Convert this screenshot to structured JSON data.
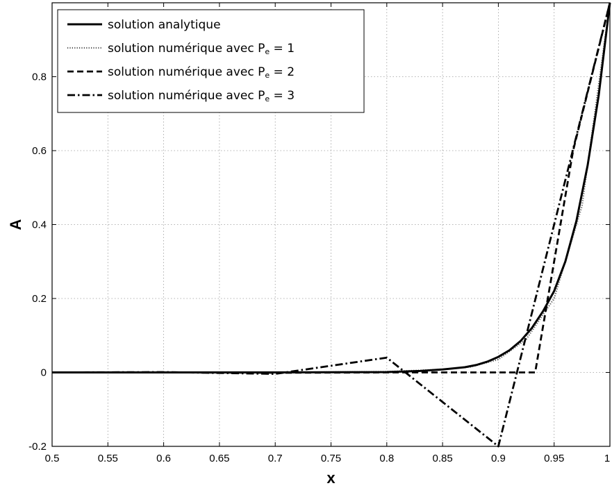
{
  "chart_data": {
    "type": "line",
    "xlabel": "x",
    "ylabel": "A",
    "xlim": [
      0.5,
      1.0
    ],
    "ylim": [
      -0.2,
      1.0
    ],
    "grid": true,
    "legend_position": "top-left",
    "x_ticks": [
      0.5,
      0.55,
      0.6,
      0.65,
      0.7,
      0.75,
      0.8,
      0.85,
      0.9,
      0.95,
      1.0
    ],
    "x_tick_labels": [
      "0.5",
      "0.55",
      "0.6",
      "0.65",
      "0.7",
      "0.75",
      "0.8",
      "0.85",
      "0.9",
      "0.95",
      "1"
    ],
    "y_ticks": [
      -0.2,
      0,
      0.2,
      0.4,
      0.6,
      0.8
    ],
    "y_tick_labels": [
      "-0.2",
      "0",
      "0.2",
      "0.4",
      "0.6",
      "0.8"
    ],
    "series": [
      {
        "name": "solution analytique",
        "style": "solid",
        "x": [
          0.5,
          0.7,
          0.8,
          0.83,
          0.85,
          0.87,
          0.88,
          0.89,
          0.9,
          0.91,
          0.92,
          0.93,
          0.94,
          0.95,
          0.96,
          0.97,
          0.98,
          0.99,
          1.0
        ],
        "y": [
          0,
          0,
          0.001,
          0.004,
          0.008,
          0.014,
          0.02,
          0.029,
          0.042,
          0.06,
          0.085,
          0.12,
          0.165,
          0.22,
          0.3,
          0.41,
          0.56,
          0.75,
          1.0
        ]
      },
      {
        "name": "solution numérique avec Pe = 1",
        "label_main": "solution numérique avec P",
        "label_sub": "e",
        "label_tail": " = 1",
        "style": "dotted",
        "x": [
          0.5,
          0.7,
          0.8,
          0.85,
          0.875,
          0.9,
          0.925,
          0.95,
          0.975,
          1.0
        ],
        "y": [
          0,
          0,
          0.002,
          0.008,
          0.015,
          0.035,
          0.09,
          0.2,
          0.45,
          1.0
        ]
      },
      {
        "name": "solution numérique avec Pe = 2",
        "label_main": "solution numérique avec P",
        "label_sub": "e",
        "label_tail": " = 2",
        "style": "dashed",
        "x": [
          0.5,
          0.6,
          0.7,
          0.8,
          0.9,
          0.933,
          0.967,
          1.0
        ],
        "y": [
          0,
          0,
          -0.001,
          0,
          0,
          0,
          0.6,
          1.0
        ]
      },
      {
        "name": "solution numérique avec Pe = 3",
        "label_main": "solution numérique avec P",
        "label_sub": "e",
        "label_tail": " = 3",
        "style": "dashdot",
        "x": [
          0.5,
          0.6,
          0.7,
          0.8,
          0.9,
          1.0
        ],
        "y": [
          0,
          0.001,
          -0.004,
          0.04,
          -0.2,
          1.0
        ]
      }
    ]
  }
}
